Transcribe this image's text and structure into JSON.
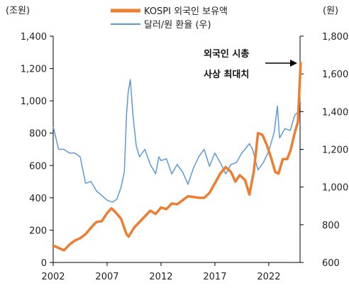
{
  "chart_data": {
    "type": "line",
    "x_ticks": [
      "2002",
      "2007",
      "2012",
      "2017",
      "2022"
    ],
    "x_range": [
      2002,
      2024.9
    ],
    "y_left": {
      "unit_label": "(조원)",
      "range": [
        0,
        1400
      ],
      "ticks": [
        "0",
        "200",
        "400",
        "600",
        "800",
        "1,000",
        "1,200",
        "1,400"
      ]
    },
    "y_right": {
      "unit_label": "(원)",
      "range": [
        600,
        1800
      ],
      "ticks": [
        "600",
        "800",
        "1,000",
        "1,200",
        "1,400",
        "1,600",
        "1,800"
      ]
    },
    "grid": false,
    "legend_position": "top-center",
    "annotation": {
      "lines": [
        "외국인 시총",
        "사상 최대치"
      ]
    },
    "series": [
      {
        "name": "KOSPI 외국인 보유액",
        "axis": "left",
        "color": "#ed7d31",
        "points": [
          [
            2002.0,
            105
          ],
          [
            2002.5,
            90
          ],
          [
            2003.0,
            75
          ],
          [
            2003.5,
            110
          ],
          [
            2004.0,
            135
          ],
          [
            2004.5,
            150
          ],
          [
            2005.0,
            175
          ],
          [
            2005.5,
            215
          ],
          [
            2006.0,
            250
          ],
          [
            2006.5,
            255
          ],
          [
            2007.0,
            305
          ],
          [
            2007.4,
            335
          ],
          [
            2007.8,
            310
          ],
          [
            2008.3,
            270
          ],
          [
            2008.8,
            175
          ],
          [
            2009.0,
            160
          ],
          [
            2009.5,
            215
          ],
          [
            2010.0,
            250
          ],
          [
            2010.5,
            285
          ],
          [
            2011.0,
            320
          ],
          [
            2011.5,
            300
          ],
          [
            2012.0,
            340
          ],
          [
            2012.5,
            330
          ],
          [
            2013.0,
            365
          ],
          [
            2013.5,
            360
          ],
          [
            2014.0,
            385
          ],
          [
            2014.5,
            410
          ],
          [
            2015.0,
            405
          ],
          [
            2015.5,
            400
          ],
          [
            2016.0,
            400
          ],
          [
            2016.5,
            430
          ],
          [
            2017.0,
            490
          ],
          [
            2017.5,
            550
          ],
          [
            2018.0,
            590
          ],
          [
            2018.5,
            560
          ],
          [
            2018.9,
            500
          ],
          [
            2019.3,
            540
          ],
          [
            2019.8,
            510
          ],
          [
            2020.2,
            420
          ],
          [
            2020.6,
            560
          ],
          [
            2021.0,
            800
          ],
          [
            2021.4,
            790
          ],
          [
            2021.8,
            730
          ],
          [
            2022.2,
            650
          ],
          [
            2022.6,
            560
          ],
          [
            2022.9,
            550
          ],
          [
            2023.3,
            640
          ],
          [
            2023.7,
            640
          ],
          [
            2024.0,
            690
          ],
          [
            2024.4,
            800
          ],
          [
            2024.7,
            870
          ],
          [
            2024.85,
            1080
          ],
          [
            2024.95,
            1235
          ]
        ]
      },
      {
        "name": "달러/원 환율 (우)",
        "axis": "right",
        "color": "#5b9bd5",
        "points": [
          [
            2002.0,
            1320
          ],
          [
            2002.5,
            1200
          ],
          [
            2003.0,
            1200
          ],
          [
            2003.5,
            1180
          ],
          [
            2004.0,
            1180
          ],
          [
            2004.5,
            1160
          ],
          [
            2005.0,
            1020
          ],
          [
            2005.5,
            1030
          ],
          [
            2006.0,
            980
          ],
          [
            2006.5,
            955
          ],
          [
            2007.0,
            930
          ],
          [
            2007.5,
            920
          ],
          [
            2007.9,
            935
          ],
          [
            2008.3,
            1000
          ],
          [
            2008.6,
            1080
          ],
          [
            2008.8,
            1380
          ],
          [
            2008.95,
            1500
          ],
          [
            2009.15,
            1570
          ],
          [
            2009.4,
            1380
          ],
          [
            2009.7,
            1220
          ],
          [
            2010.0,
            1160
          ],
          [
            2010.5,
            1200
          ],
          [
            2011.0,
            1120
          ],
          [
            2011.5,
            1070
          ],
          [
            2011.8,
            1160
          ],
          [
            2012.0,
            1140
          ],
          [
            2012.5,
            1150
          ],
          [
            2013.0,
            1070
          ],
          [
            2013.5,
            1120
          ],
          [
            2014.0,
            1080
          ],
          [
            2014.5,
            1015
          ],
          [
            2015.0,
            1100
          ],
          [
            2015.5,
            1160
          ],
          [
            2016.0,
            1200
          ],
          [
            2016.5,
            1110
          ],
          [
            2017.0,
            1180
          ],
          [
            2017.5,
            1130
          ],
          [
            2018.0,
            1070
          ],
          [
            2018.5,
            1120
          ],
          [
            2019.0,
            1130
          ],
          [
            2019.5,
            1180
          ],
          [
            2020.2,
            1230
          ],
          [
            2020.5,
            1200
          ],
          [
            2021.0,
            1090
          ],
          [
            2021.5,
            1130
          ],
          [
            2022.0,
            1190
          ],
          [
            2022.5,
            1290
          ],
          [
            2022.8,
            1430
          ],
          [
            2023.0,
            1260
          ],
          [
            2023.5,
            1310
          ],
          [
            2024.0,
            1300
          ],
          [
            2024.4,
            1380
          ],
          [
            2024.75,
            1400
          ],
          [
            2024.85,
            1470
          ],
          [
            2024.95,
            1440
          ]
        ]
      }
    ]
  }
}
